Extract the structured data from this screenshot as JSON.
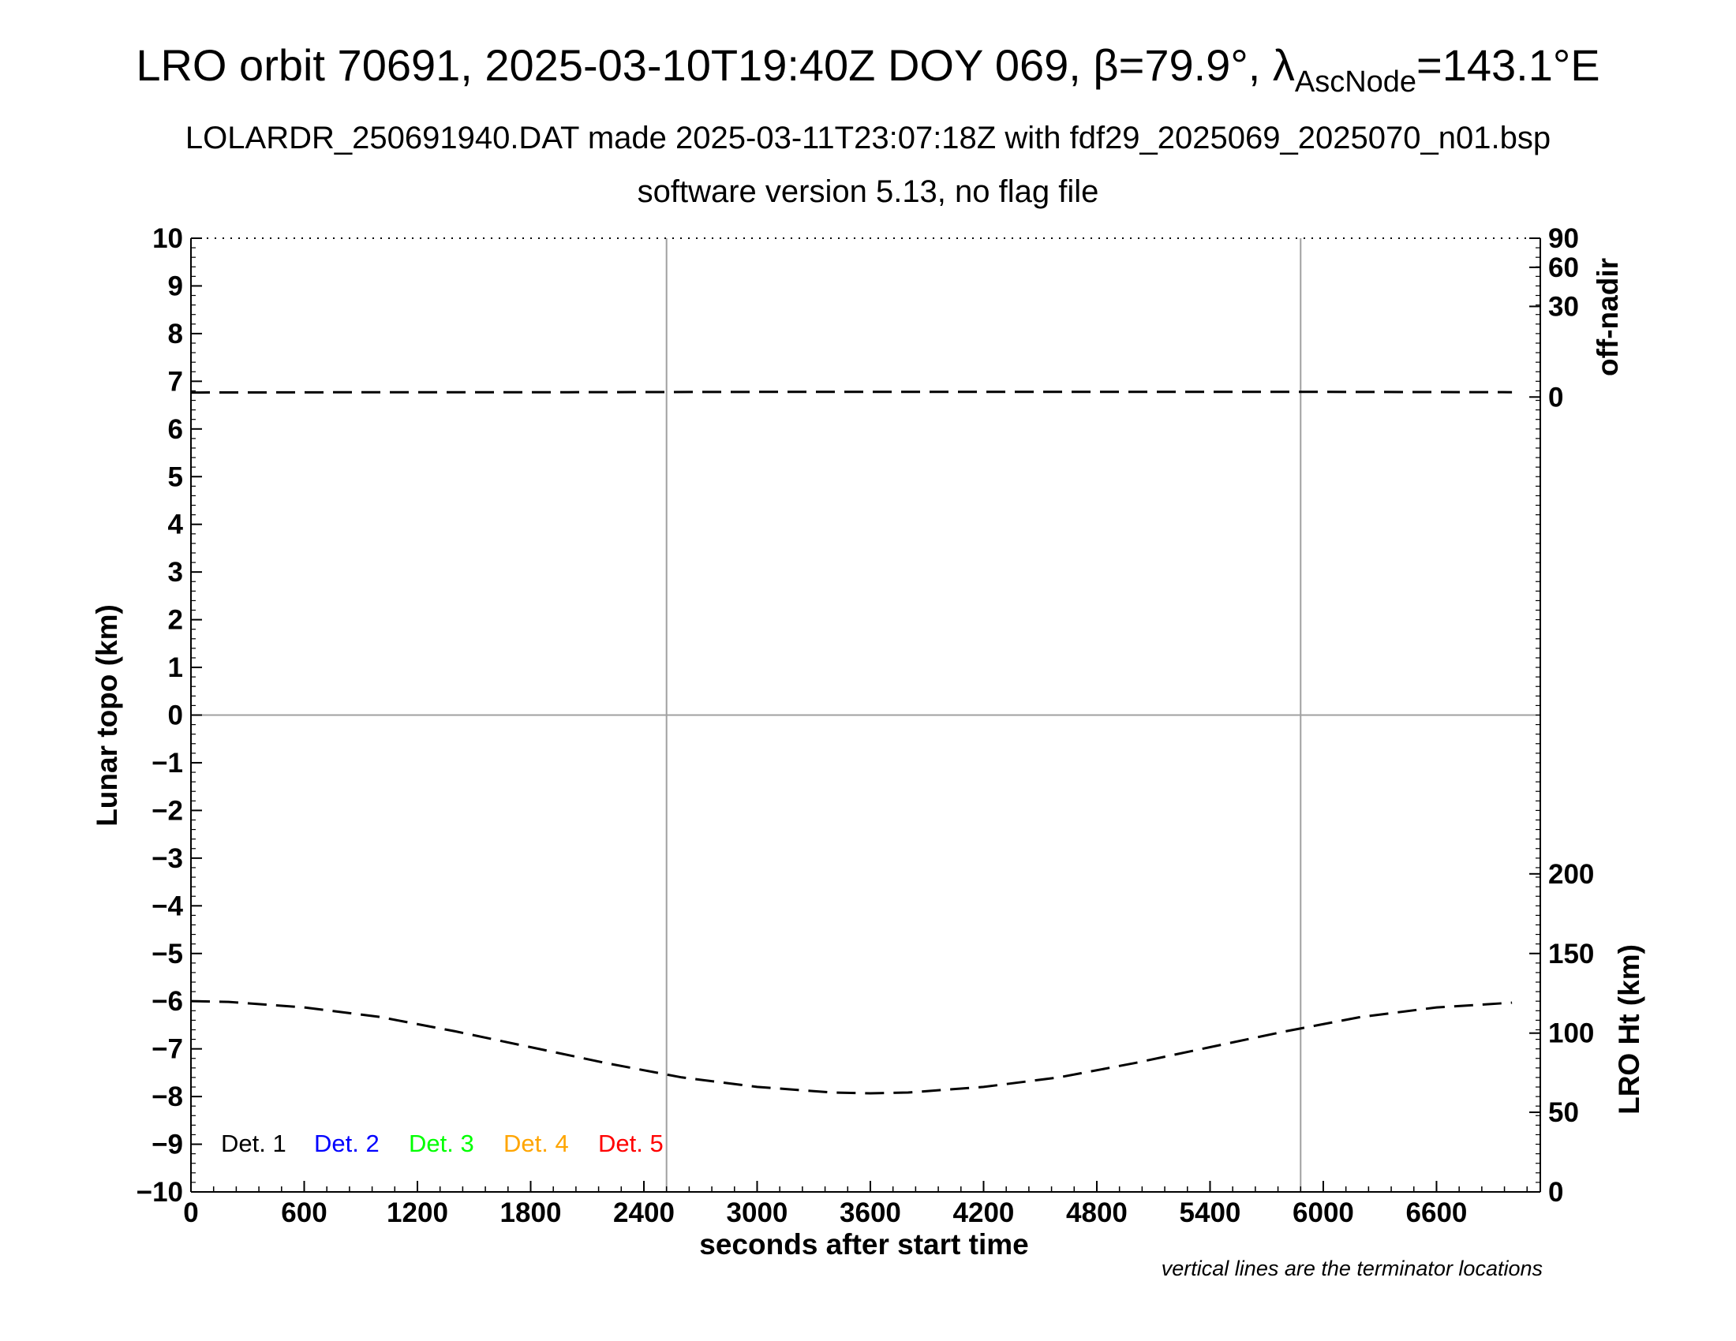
{
  "title": {
    "prefix": "LRO orbit 70691, 2025-03-10T19:40Z DOY 069, ",
    "beta_symbol": "β",
    "beta_text": "=79.9°, ",
    "lambda_symbol": "λ",
    "lambda_subscript": "AscNode",
    "lambda_text": "=143.1°E"
  },
  "subtitle_1": "LOLARDR_250691940.DAT made 2025-03-11T23:07:18Z with fdf29_2025069_2025070_n01.bsp",
  "subtitle_2": "software version 5.13, no flag file",
  "footnote": "vertical lines are the terminator locations",
  "colors": {
    "axis": "#000000",
    "grid": "#a0a0a0",
    "det1": "#000000",
    "det2": "#0000ff",
    "det3": "#00ff00",
    "det4": "#ffa500",
    "det5": "#ff0000"
  },
  "chart_data": {
    "type": "line",
    "xlabel": "seconds after start time",
    "ylabel": "Lunar topo (km)",
    "xlim": [
      0,
      7150
    ],
    "ylim": [
      -10,
      10
    ],
    "x_ticks": [
      0,
      600,
      1200,
      1800,
      2400,
      3000,
      3600,
      4200,
      4800,
      5400,
      6000,
      6600
    ],
    "x_tick_labels": [
      "0",
      "600",
      "1200",
      "1800",
      "2400",
      "3000",
      "3600",
      "4200",
      "4800",
      "5400",
      "6000",
      "6600"
    ],
    "y_ticks": [
      10,
      9,
      8,
      7,
      6,
      5,
      4,
      3,
      2,
      1,
      0,
      -1,
      -2,
      -3,
      -4,
      -5,
      -6,
      -7,
      -8,
      -9,
      -10
    ],
    "y_tick_labels": [
      "10",
      "9",
      "8",
      "7",
      "6",
      "5",
      "4",
      "3",
      "2",
      "1",
      "0",
      "−1",
      "−2",
      "−3",
      "−4",
      "−5",
      "−6",
      "−7",
      "−8",
      "−9",
      "−10"
    ],
    "terminator_x": [
      2520,
      5880
    ],
    "zero_line": 0,
    "right_axis_offnadir": {
      "label": "off-nadir",
      "ticks": [
        "90",
        "60",
        "30",
        "0"
      ],
      "tick_topo": [
        10,
        9.39,
        8.57,
        6.67
      ]
    },
    "right_axis_height": {
      "label": "LRO Ht (km)",
      "ticks": [
        "200",
        "150",
        "100",
        "50",
        "0"
      ],
      "tick_topo": [
        -3.33,
        -5.0,
        -6.67,
        -8.33,
        -10.0
      ]
    },
    "legend": [
      "Det. 1",
      "Det. 2",
      "Det. 3",
      "Det. 4",
      "Det. 5"
    ],
    "legend_placement": "bottom-left",
    "series": [
      {
        "name": "off-nadir",
        "axis": "off-nadir",
        "style": "dashed",
        "x": [
          0,
          1000,
          2000,
          3000,
          4000,
          5000,
          6000,
          7000
        ],
        "y": [
          1.5,
          1.6,
          1.6,
          1.7,
          1.7,
          1.7,
          1.7,
          1.6
        ]
      },
      {
        "name": "LRO Ht (km)",
        "axis": "height",
        "style": "dashed",
        "x": [
          0,
          200,
          600,
          1000,
          1400,
          1800,
          2200,
          2600,
          3000,
          3400,
          3600,
          3800,
          4200,
          4600,
          5000,
          5400,
          5800,
          6200,
          6600,
          7000
        ],
        "y": [
          120,
          119.5,
          116,
          110,
          101,
          91,
          81,
          72,
          66,
          62.5,
          62,
          62.5,
          66,
          72,
          81,
          91,
          101,
          110,
          116,
          119
        ]
      }
    ]
  }
}
